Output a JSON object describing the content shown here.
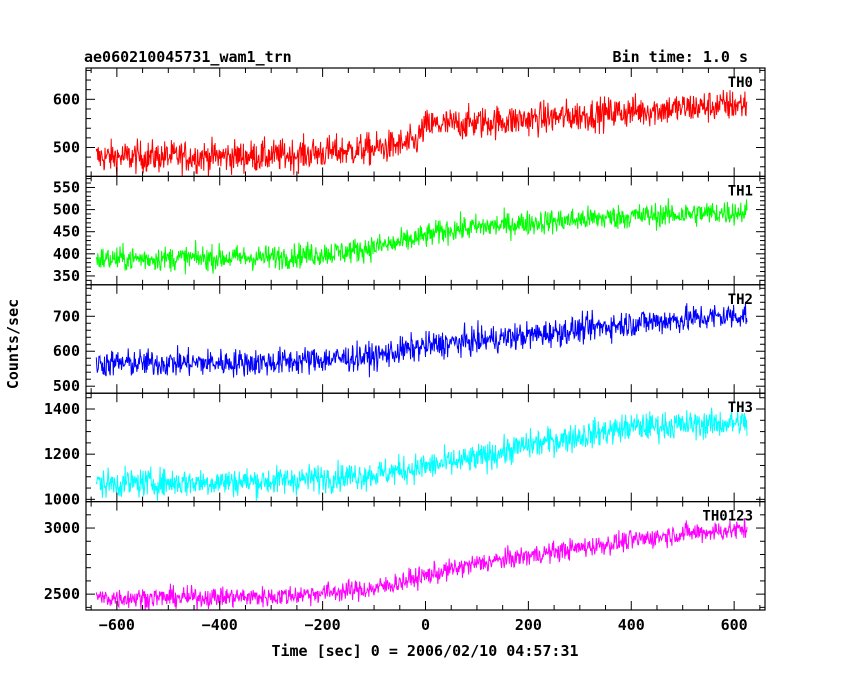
{
  "header": {
    "title": "ae060210045731_wam1_trn",
    "bin_time": "Bin time: 1.0 s"
  },
  "chart_data": {
    "type": "line",
    "title": "ae060210045731_wam1_trn",
    "xlabel": "Time [sec] 0 = 2006/02/10 04:57:31",
    "ylabel": "Counts/sec",
    "xlim": [
      -660,
      660
    ],
    "x_ticks": [
      -600,
      -400,
      -200,
      0,
      200,
      400,
      600
    ],
    "x_tick_labels": [
      "−600",
      "−400",
      "−200",
      "0",
      "200",
      "400",
      "600"
    ],
    "x_data_range": [
      -640,
      625
    ],
    "panels": [
      {
        "name": "TH0",
        "color": "#ff0000",
        "ylim": [
          440,
          665
        ],
        "yticks": [
          500,
          600
        ],
        "yminor_step": 20,
        "trend": [
          [
            -640,
            480
          ],
          [
            -300,
            482
          ],
          [
            -100,
            497
          ],
          [
            -20,
            510
          ],
          [
            0,
            545
          ],
          [
            200,
            558
          ],
          [
            400,
            575
          ],
          [
            625,
            590
          ]
        ],
        "noise": 24
      },
      {
        "name": "TH1",
        "color": "#00ff00",
        "ylim": [
          330,
          575
        ],
        "yticks": [
          350,
          400,
          450,
          500,
          550
        ],
        "yminor_step": 10,
        "trend": [
          [
            -640,
            388
          ],
          [
            -300,
            392
          ],
          [
            -150,
            405
          ],
          [
            -50,
            425
          ],
          [
            50,
            455
          ],
          [
            200,
            470
          ],
          [
            400,
            485
          ],
          [
            625,
            495
          ]
        ],
        "noise": 20
      },
      {
        "name": "TH2",
        "color": "#0000ff",
        "ylim": [
          480,
          790
        ],
        "yticks": [
          500,
          600,
          700
        ],
        "yminor_step": 20,
        "trend": [
          [
            -640,
            565
          ],
          [
            -300,
            568
          ],
          [
            -100,
            585
          ],
          [
            0,
            615
          ],
          [
            200,
            645
          ],
          [
            400,
            680
          ],
          [
            625,
            705
          ]
        ],
        "noise": 28
      },
      {
        "name": "TH3",
        "color": "#00ffff",
        "ylim": [
          990,
          1470
        ],
        "yticks": [
          1000,
          1200,
          1400
        ],
        "yminor_step": 50,
        "trend": [
          [
            -640,
            1070
          ],
          [
            -300,
            1080
          ],
          [
            -100,
            1110
          ],
          [
            100,
            1180
          ],
          [
            200,
            1240
          ],
          [
            400,
            1320
          ],
          [
            625,
            1340
          ]
        ],
        "noise": 45
      },
      {
        "name": "TH0123",
        "color": "#ff00ff",
        "ylim": [
          2380,
          3200
        ],
        "yticks": [
          2500,
          3000
        ],
        "yminor_step": 100,
        "trend": [
          [
            -640,
            2470
          ],
          [
            -300,
            2480
          ],
          [
            -100,
            2540
          ],
          [
            0,
            2640
          ],
          [
            100,
            2730
          ],
          [
            300,
            2850
          ],
          [
            500,
            2960
          ],
          [
            625,
            2990
          ]
        ],
        "noise": 55
      }
    ],
    "legend_position": "top-right inside each panel",
    "grid": false
  }
}
